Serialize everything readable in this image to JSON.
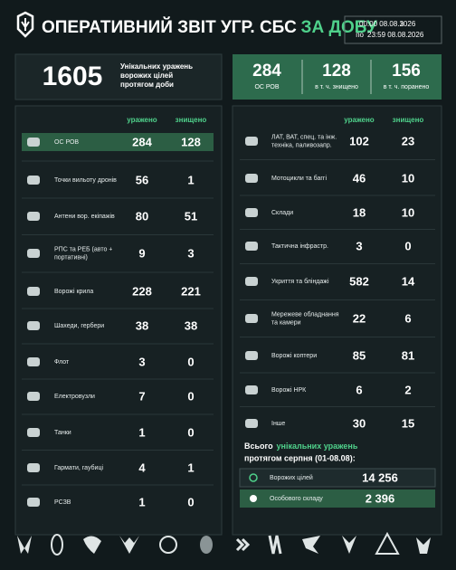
{
  "header": {
    "title_main": "ОПЕРАТИВНИЙ ЗВІТ УГР. СБС",
    "title_accent": "ЗА ДОБУ",
    "from_label": "з",
    "from_value": "00:00 08.08.2026",
    "to_label": "по",
    "to_value": "23:59 08.08.2026"
  },
  "summary": {
    "total": {
      "value": "1605",
      "label": [
        "Унікальних уражень",
        "ворожих цілей",
        "протягом доби"
      ]
    },
    "stats": [
      {
        "value": "284",
        "label": "ОС РОВ"
      },
      {
        "value": "128",
        "label": "в т. ч. знищено"
      },
      {
        "value": "156",
        "label": "в т. ч. поранено"
      }
    ]
  },
  "left_table": {
    "columns": [
      "уражено",
      "знищено"
    ],
    "rows": [
      {
        "label": [
          "ОС РОВ"
        ],
        "hit": "284",
        "destroyed": "128"
      },
      {
        "label": [
          "Точки вильоту дронів"
        ],
        "hit": "56",
        "destroyed": "1"
      },
      {
        "label": [
          "Антени вор. екіпажів"
        ],
        "hit": "80",
        "destroyed": "51"
      },
      {
        "label": [
          "РПС та РЕБ (авто +",
          "портативні)"
        ],
        "hit": "9",
        "destroyed": "3"
      },
      {
        "label": [
          "Ворожі крила"
        ],
        "hit": "228",
        "destroyed": "221"
      },
      {
        "label": [
          "Шахеди, гербери"
        ],
        "hit": "38",
        "destroyed": "38"
      },
      {
        "label": [
          "Флот"
        ],
        "hit": "3",
        "destroyed": "0"
      },
      {
        "label": [
          "Електровузли"
        ],
        "hit": "7",
        "destroyed": "0"
      },
      {
        "label": [
          "Танки"
        ],
        "hit": "1",
        "destroyed": "0"
      },
      {
        "label": [
          "Гармати, гаубиці"
        ],
        "hit": "4",
        "destroyed": "1"
      },
      {
        "label": [
          "РСЗВ"
        ],
        "hit": "1",
        "destroyed": "0"
      }
    ]
  },
  "right_table": {
    "columns": [
      "уражено",
      "знищено"
    ],
    "rows": [
      {
        "label": [
          "ЛАТ, ВАТ, спец. та інж.",
          "техніка, паливозапр."
        ],
        "hit": "102",
        "destroyed": "23"
      },
      {
        "label": [
          "Мотоцикли та баггі"
        ],
        "hit": "46",
        "destroyed": "10"
      },
      {
        "label": [
          "Склади"
        ],
        "hit": "18",
        "destroyed": "10"
      },
      {
        "label": [
          "Тактична інфрастр."
        ],
        "hit": "3",
        "destroyed": "0"
      },
      {
        "label": [
          "Укриття та бліндажі"
        ],
        "hit": "582",
        "destroyed": "14"
      },
      {
        "label": [
          "Мережеве обладнання",
          "та камери"
        ],
        "hit": "22",
        "destroyed": "6"
      },
      {
        "label": [
          "Ворожі коптери"
        ],
        "hit": "85",
        "destroyed": "81"
      },
      {
        "label": [
          "Ворожі НРК"
        ],
        "hit": "6",
        "destroyed": "2"
      },
      {
        "label": [
          "Інше"
        ],
        "hit": "30",
        "destroyed": "15"
      }
    ]
  },
  "month_total": {
    "line1_start": "Всього",
    "line1_accent": "унікальних уражень",
    "line2": "протягом серпня (01-08.08):",
    "items": [
      {
        "label": "Ворожих цілей",
        "value": "14 256"
      },
      {
        "label": "Особового складу",
        "value": "2 396"
      }
    ]
  }
}
